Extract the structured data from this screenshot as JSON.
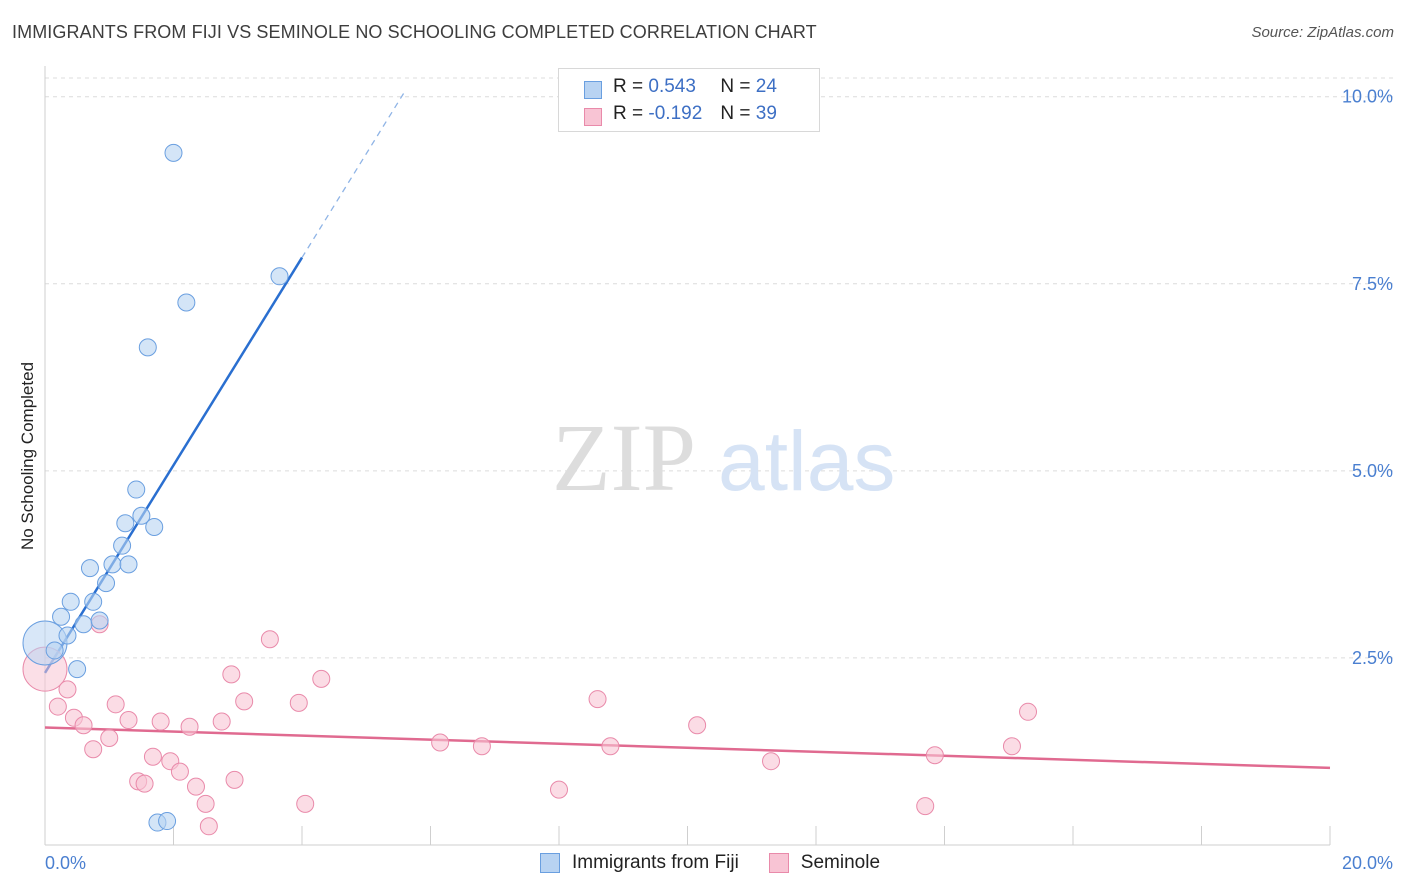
{
  "header": {
    "title": "IMMIGRANTS FROM FIJI VS SEMINOLE NO SCHOOLING COMPLETED CORRELATION CHART",
    "source": "Source: ZipAtlas.com"
  },
  "watermark": {
    "part1": "ZIP",
    "part2": "atlas"
  },
  "colors": {
    "fiji_fill": "#b8d3f2",
    "fiji_stroke": "#6a9fe0",
    "fiji_line": "#2a6fd0",
    "seminole_fill": "#f8c4d4",
    "seminole_stroke": "#e98aaa",
    "seminole_line": "#e06a90",
    "tick": "#4a7fd0",
    "grid": "#dcdcdc"
  },
  "legend_top": {
    "rows": [
      {
        "r_label": "R =",
        "r_value": "0.543",
        "n_label": "N =",
        "n_value": "24"
      },
      {
        "r_label": "R =",
        "r_value": "-0.192",
        "n_label": "N =",
        "n_value": "39"
      }
    ]
  },
  "legend_bottom": {
    "fiji": "Immigrants from Fiji",
    "seminole": "Seminole"
  },
  "chart_data": {
    "type": "scatter",
    "title": "IMMIGRANTS FROM FIJI VS SEMINOLE NO SCHOOLING COMPLETED CORRELATION CHART",
    "xlabel": "",
    "ylabel": "No Schooling Completed",
    "xlim": [
      0,
      20
    ],
    "ylim": [
      0,
      10.25
    ],
    "x_tick_labels": [
      "0.0%",
      "20.0%"
    ],
    "y_ticks": [
      2.5,
      5.0,
      7.5,
      10.0
    ],
    "y_tick_labels": [
      "2.5%",
      "5.0%",
      "7.5%",
      "10.0%"
    ],
    "grid": true,
    "series": [
      {
        "name": "Immigrants from Fiji",
        "R": 0.543,
        "N": 24,
        "trend": {
          "x0": 0.0,
          "y0": 2.3,
          "x1": 4.0,
          "y1": 7.85,
          "dash_to_x": 5.6
        },
        "points": [
          {
            "x": 0.0,
            "y": 2.7,
            "big": true
          },
          {
            "x": 0.15,
            "y": 2.6
          },
          {
            "x": 0.25,
            "y": 3.05
          },
          {
            "x": 0.35,
            "y": 2.8
          },
          {
            "x": 0.4,
            "y": 3.25
          },
          {
            "x": 0.5,
            "y": 2.35
          },
          {
            "x": 0.6,
            "y": 2.95
          },
          {
            "x": 0.7,
            "y": 3.7
          },
          {
            "x": 0.75,
            "y": 3.25
          },
          {
            "x": 0.85,
            "y": 3.0
          },
          {
            "x": 0.95,
            "y": 3.5
          },
          {
            "x": 1.05,
            "y": 3.75
          },
          {
            "x": 1.2,
            "y": 4.0
          },
          {
            "x": 1.25,
            "y": 4.3
          },
          {
            "x": 1.3,
            "y": 3.75
          },
          {
            "x": 1.42,
            "y": 4.75
          },
          {
            "x": 1.5,
            "y": 4.4
          },
          {
            "x": 1.6,
            "y": 6.65
          },
          {
            "x": 1.7,
            "y": 4.25
          },
          {
            "x": 1.75,
            "y": 0.3
          },
          {
            "x": 1.9,
            "y": 0.32
          },
          {
            "x": 2.0,
            "y": 9.25
          },
          {
            "x": 2.2,
            "y": 7.25
          },
          {
            "x": 3.65,
            "y": 7.6
          }
        ]
      },
      {
        "name": "Seminole",
        "R": -0.192,
        "N": 39,
        "trend": {
          "x0": 0.0,
          "y0": 1.57,
          "x1": 20.0,
          "y1": 1.03
        },
        "points": [
          {
            "x": 0.0,
            "y": 2.35,
            "big": true
          },
          {
            "x": 0.2,
            "y": 1.85
          },
          {
            "x": 0.35,
            "y": 2.08
          },
          {
            "x": 0.45,
            "y": 1.7
          },
          {
            "x": 0.6,
            "y": 1.6
          },
          {
            "x": 0.75,
            "y": 1.28
          },
          {
            "x": 0.85,
            "y": 2.95
          },
          {
            "x": 1.0,
            "y": 1.43
          },
          {
            "x": 1.1,
            "y": 1.88
          },
          {
            "x": 1.3,
            "y": 1.67
          },
          {
            "x": 1.45,
            "y": 0.85
          },
          {
            "x": 1.55,
            "y": 0.82
          },
          {
            "x": 1.68,
            "y": 1.18
          },
          {
            "x": 1.8,
            "y": 1.65
          },
          {
            "x": 1.95,
            "y": 1.12
          },
          {
            "x": 2.1,
            "y": 0.98
          },
          {
            "x": 2.25,
            "y": 1.58
          },
          {
            "x": 2.35,
            "y": 0.78
          },
          {
            "x": 2.5,
            "y": 0.55
          },
          {
            "x": 2.55,
            "y": 0.25
          },
          {
            "x": 2.75,
            "y": 1.65
          },
          {
            "x": 2.9,
            "y": 2.28
          },
          {
            "x": 2.95,
            "y": 0.87
          },
          {
            "x": 3.1,
            "y": 1.92
          },
          {
            "x": 3.5,
            "y": 2.75
          },
          {
            "x": 3.95,
            "y": 1.9
          },
          {
            "x": 4.05,
            "y": 0.55
          },
          {
            "x": 4.3,
            "y": 2.22
          },
          {
            "x": 6.15,
            "y": 1.37
          },
          {
            "x": 6.8,
            "y": 1.32
          },
          {
            "x": 8.0,
            "y": 0.74
          },
          {
            "x": 8.6,
            "y": 1.95
          },
          {
            "x": 8.8,
            "y": 1.32
          },
          {
            "x": 10.15,
            "y": 1.6
          },
          {
            "x": 11.3,
            "y": 1.12
          },
          {
            "x": 13.7,
            "y": 0.52
          },
          {
            "x": 13.85,
            "y": 1.2
          },
          {
            "x": 15.05,
            "y": 1.32
          },
          {
            "x": 15.3,
            "y": 1.78
          }
        ]
      }
    ]
  }
}
